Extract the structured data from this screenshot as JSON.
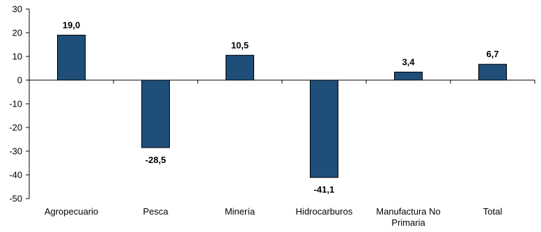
{
  "chart_data": {
    "type": "bar",
    "categories": [
      [
        "Agropecuario"
      ],
      [
        "Pesca"
      ],
      [
        "Minería"
      ],
      [
        "Hidrocarburos"
      ],
      [
        "Manufactura No",
        "Primaria"
      ],
      [
        "Total"
      ]
    ],
    "values": [
      19.0,
      -28.5,
      10.5,
      -41.1,
      3.4,
      6.7
    ],
    "data_labels": [
      "19,0",
      "-28,5",
      "10,5",
      "-41,1",
      "3,4",
      "6,7"
    ],
    "ylim": [
      -50,
      30
    ],
    "yticks": [
      30,
      20,
      10,
      0,
      -10,
      -20,
      -30,
      -40,
      -50
    ],
    "ytick_labels": [
      "30",
      "20",
      "10",
      "0",
      "-10",
      "-20",
      "-30",
      "-40",
      "-50"
    ],
    "title": "",
    "xlabel": "",
    "ylabel": "",
    "grid": false,
    "legend": "none",
    "bar_color": "#1f4e79",
    "bar_edge_color": "#000000",
    "axis_color": "#000000"
  }
}
